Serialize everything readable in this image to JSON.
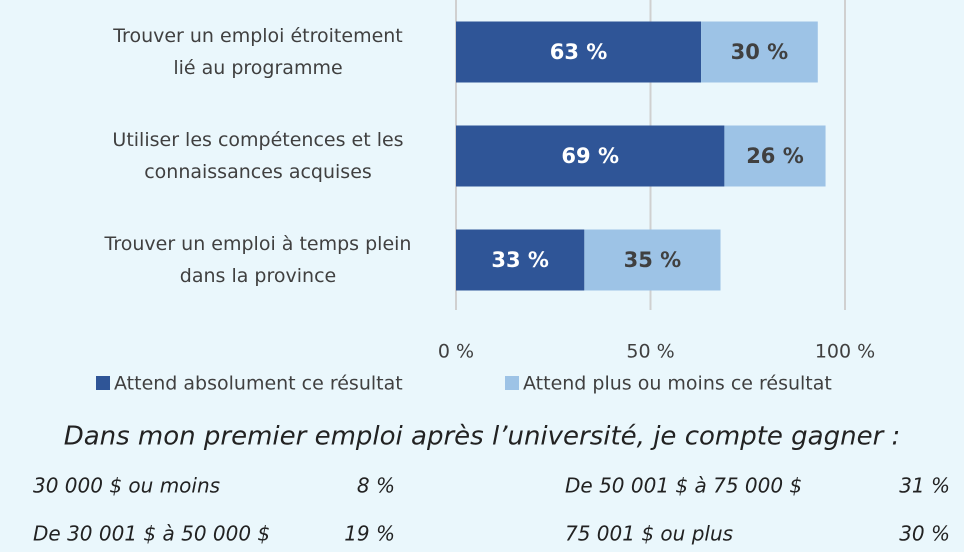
{
  "chart_data": {
    "type": "stacked_barh",
    "categories": [
      "Trouver un emploi étroitement\nlié au programme",
      "Utiliser les compétences et les\nconnaissances acquises",
      "Trouver un emploi à temps plein\ndans la province"
    ],
    "series": [
      {
        "name": "Attend absolument ce résultat",
        "color": "#2f5597",
        "values": [
          63,
          69,
          33
        ],
        "value_labels": [
          "63 %",
          "69 %",
          "33 %"
        ]
      },
      {
        "name": "Attend plus ou moins ce résultat",
        "color": "#9dc3e6",
        "values": [
          30,
          26,
          35
        ],
        "value_labels": [
          "30 %",
          "26 %",
          "35 %"
        ]
      }
    ],
    "xlim": [
      0,
      100
    ],
    "xticks": [
      {
        "value": 0,
        "label": "0 %"
      },
      {
        "value": 50,
        "label": "50 %"
      },
      {
        "value": 100,
        "label": "100 %"
      }
    ],
    "grid": true,
    "legend": "bottom"
  },
  "income": {
    "title": "Dans mon premier emploi après l’université, je compte gagner :",
    "items": [
      {
        "label": "30 000 $ ou moins",
        "value": "8 %"
      },
      {
        "label": "De 30 001 $ à 50 000 $",
        "value": "19 %"
      },
      {
        "label": "De 50 001 $ à 75 000 $",
        "value": "31 %"
      },
      {
        "label": "75 001 $ ou plus",
        "value": "30 %"
      }
    ]
  }
}
